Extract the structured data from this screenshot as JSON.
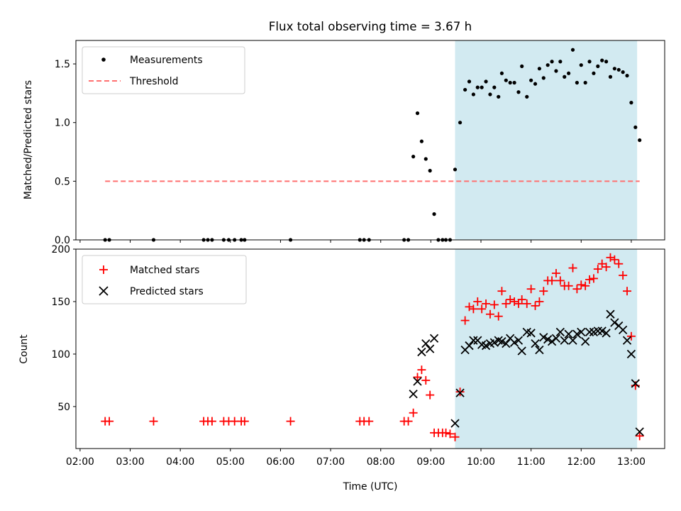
{
  "chart_data": [
    {
      "type": "scatter",
      "title": "Flux total observing time = 3.67 h",
      "xlabel": "",
      "ylabel": "Matched/Predicted stars",
      "ylim": [
        0,
        1.7
      ],
      "yticks": [
        0.0,
        0.5,
        1.0,
        1.5
      ],
      "ytick_labels": [
        "0.0",
        "0.5",
        "1.0",
        "1.5"
      ],
      "shaded_region": {
        "x": [
          "09:29",
          "13:07"
        ],
        "color": "#add8e6"
      },
      "legend": {
        "position": "upper-left",
        "entries": [
          {
            "label": "Measurements",
            "marker": "dot",
            "color": "#000000"
          },
          {
            "label": "Threshold",
            "marker": "dashed-line",
            "color": "#ff7070"
          }
        ]
      },
      "series": [
        {
          "name": "Measurements",
          "color": "#000000",
          "points": [
            [
              "02:30",
              0
            ],
            [
              "02:35",
              0
            ],
            [
              "03:28",
              0
            ],
            [
              "04:28",
              0
            ],
            [
              "04:33",
              0
            ],
            [
              "04:38",
              0
            ],
            [
              "04:52",
              0
            ],
            [
              "04:58",
              0
            ],
            [
              "05:05",
              0
            ],
            [
              "05:13",
              0
            ],
            [
              "05:17",
              0
            ],
            [
              "06:12",
              0
            ],
            [
              "07:35",
              0
            ],
            [
              "07:40",
              0
            ],
            [
              "07:46",
              0
            ],
            [
              "08:28",
              0
            ],
            [
              "08:33",
              0
            ],
            [
              "08:39",
              0.71
            ],
            [
              "08:44",
              1.08
            ],
            [
              "08:49",
              0.84
            ],
            [
              "08:54",
              0.69
            ],
            [
              "08:59",
              0.59
            ],
            [
              "09:04",
              0.22
            ],
            [
              "09:09",
              0
            ],
            [
              "09:14",
              0
            ],
            [
              "09:18",
              0
            ],
            [
              "09:23",
              0
            ],
            [
              "09:29",
              0.6
            ],
            [
              "09:35",
              1.0
            ],
            [
              "09:41",
              1.28
            ],
            [
              "09:46",
              1.35
            ],
            [
              "09:51",
              1.24
            ],
            [
              "09:56",
              1.3
            ],
            [
              "10:01",
              1.3
            ],
            [
              "10:06",
              1.35
            ],
            [
              "10:11",
              1.24
            ],
            [
              "10:16",
              1.3
            ],
            [
              "10:21",
              1.22
            ],
            [
              "10:25",
              1.42
            ],
            [
              "10:30",
              1.36
            ],
            [
              "10:35",
              1.34
            ],
            [
              "10:40",
              1.34
            ],
            [
              "10:45",
              1.26
            ],
            [
              "10:49",
              1.48
            ],
            [
              "10:55",
              1.22
            ],
            [
              "11:00",
              1.36
            ],
            [
              "11:05",
              1.33
            ],
            [
              "11:10",
              1.46
            ],
            [
              "11:15",
              1.38
            ],
            [
              "11:20",
              1.49
            ],
            [
              "11:25",
              1.52
            ],
            [
              "11:30",
              1.44
            ],
            [
              "11:35",
              1.52
            ],
            [
              "11:40",
              1.39
            ],
            [
              "11:45",
              1.42
            ],
            [
              "11:50",
              1.62
            ],
            [
              "11:55",
              1.34
            ],
            [
              "12:00",
              1.49
            ],
            [
              "12:05",
              1.34
            ],
            [
              "12:10",
              1.52
            ],
            [
              "12:15",
              1.42
            ],
            [
              "12:20",
              1.48
            ],
            [
              "12:25",
              1.53
            ],
            [
              "12:30",
              1.52
            ],
            [
              "12:35",
              1.39
            ],
            [
              "12:40",
              1.46
            ],
            [
              "12:45",
              1.45
            ],
            [
              "12:50",
              1.43
            ],
            [
              "12:55",
              1.4
            ],
            [
              "13:00",
              1.17
            ],
            [
              "13:05",
              0.96
            ],
            [
              "13:10",
              0.85
            ]
          ]
        },
        {
          "name": "Threshold",
          "color": "#ff7070",
          "style": "dashed",
          "points": [
            [
              "02:30",
              0.5
            ],
            [
              "13:10",
              0.5
            ]
          ]
        }
      ]
    },
    {
      "type": "scatter",
      "title": "",
      "xlabel": "Time (UTC)",
      "ylabel": "Count",
      "ylim": [
        10,
        200
      ],
      "yticks": [
        50,
        100,
        150,
        200
      ],
      "ytick_labels": [
        "50",
        "100",
        "150",
        "200"
      ],
      "xlim": [
        "01:55",
        "13:40"
      ],
      "xticks": [
        "02:00",
        "03:00",
        "04:00",
        "05:00",
        "06:00",
        "07:00",
        "08:00",
        "09:00",
        "10:00",
        "11:00",
        "12:00",
        "13:00"
      ],
      "xtick_labels": [
        "02:00",
        "03:00",
        "04:00",
        "05:00",
        "06:00",
        "07:00",
        "08:00",
        "09:00",
        "10:00",
        "11:00",
        "12:00",
        "13:00"
      ],
      "shaded_region": {
        "x": [
          "09:29",
          "13:07"
        ],
        "color": "#add8e6"
      },
      "legend": {
        "position": "upper-left",
        "entries": [
          {
            "label": "Matched stars",
            "marker": "plus",
            "color": "#ff0000"
          },
          {
            "label": "Predicted stars",
            "marker": "x",
            "color": "#000000"
          }
        ]
      },
      "series": [
        {
          "name": "Matched stars",
          "color": "#ff0000",
          "marker": "plus",
          "points": [
            [
              "02:30",
              36
            ],
            [
              "02:35",
              36
            ],
            [
              "03:28",
              36
            ],
            [
              "04:28",
              36
            ],
            [
              "04:33",
              36
            ],
            [
              "04:38",
              36
            ],
            [
              "04:52",
              36
            ],
            [
              "04:58",
              36
            ],
            [
              "05:05",
              36
            ],
            [
              "05:13",
              36
            ],
            [
              "05:17",
              36
            ],
            [
              "06:12",
              36
            ],
            [
              "07:35",
              36
            ],
            [
              "07:40",
              36
            ],
            [
              "07:46",
              36
            ],
            [
              "08:28",
              36
            ],
            [
              "08:33",
              36
            ],
            [
              "08:39",
              44
            ],
            [
              "08:44",
              78
            ],
            [
              "08:49",
              85
            ],
            [
              "08:54",
              75
            ],
            [
              "08:59",
              61
            ],
            [
              "09:04",
              25
            ],
            [
              "09:09",
              25
            ],
            [
              "09:14",
              25
            ],
            [
              "09:18",
              25
            ],
            [
              "09:23",
              24
            ],
            [
              "09:29",
              21
            ],
            [
              "09:35",
              64
            ],
            [
              "09:41",
              132
            ],
            [
              "09:46",
              145
            ],
            [
              "09:51",
              143
            ],
            [
              "09:56",
              150
            ],
            [
              "10:01",
              143
            ],
            [
              "10:06",
              148
            ],
            [
              "10:11",
              138
            ],
            [
              "10:16",
              147
            ],
            [
              "10:21",
              136
            ],
            [
              "10:25",
              160
            ],
            [
              "10:30",
              148
            ],
            [
              "10:35",
              152
            ],
            [
              "10:40",
              150
            ],
            [
              "10:45",
              148
            ],
            [
              "10:49",
              152
            ],
            [
              "10:55",
              148
            ],
            [
              "11:00",
              162
            ],
            [
              "11:05",
              146
            ],
            [
              "11:10",
              150
            ],
            [
              "11:15",
              160
            ],
            [
              "11:20",
              170
            ],
            [
              "11:25",
              170
            ],
            [
              "11:30",
              177
            ],
            [
              "11:35",
              170
            ],
            [
              "11:40",
              165
            ],
            [
              "11:45",
              165
            ],
            [
              "11:50",
              182
            ],
            [
              "11:55",
              162
            ],
            [
              "12:00",
              166
            ],
            [
              "12:05",
              165
            ],
            [
              "12:10",
              171
            ],
            [
              "12:15",
              172
            ],
            [
              "12:20",
              181
            ],
            [
              "12:25",
              186
            ],
            [
              "12:30",
              183
            ],
            [
              "12:35",
              192
            ],
            [
              "12:40",
              190
            ],
            [
              "12:45",
              186
            ],
            [
              "12:50",
              175
            ],
            [
              "12:55",
              160
            ],
            [
              "13:00",
              117
            ],
            [
              "13:05",
              70
            ],
            [
              "13:10",
              22
            ]
          ]
        },
        {
          "name": "Predicted stars",
          "color": "#000000",
          "marker": "x",
          "points": [
            [
              "08:39",
              62
            ],
            [
              "08:44",
              74
            ],
            [
              "08:49",
              102
            ],
            [
              "08:54",
              110
            ],
            [
              "08:59",
              105
            ],
            [
              "09:04",
              115
            ],
            [
              "09:29",
              34
            ],
            [
              "09:35",
              63
            ],
            [
              "09:41",
              104
            ],
            [
              "09:46",
              108
            ],
            [
              "09:51",
              113
            ],
            [
              "09:56",
              113
            ],
            [
              "10:01",
              109
            ],
            [
              "10:06",
              108
            ],
            [
              "10:11",
              110
            ],
            [
              "10:16",
              111
            ],
            [
              "10:21",
              113
            ],
            [
              "10:25",
              112
            ],
            [
              "10:30",
              110
            ],
            [
              "10:35",
              115
            ],
            [
              "10:40",
              111
            ],
            [
              "10:45",
              113
            ],
            [
              "10:49",
              103
            ],
            [
              "10:55",
              121
            ],
            [
              "11:00",
              120
            ],
            [
              "11:05",
              110
            ],
            [
              "11:10",
              104
            ],
            [
              "11:15",
              116
            ],
            [
              "11:20",
              114
            ],
            [
              "11:25",
              112
            ],
            [
              "11:30",
              115
            ],
            [
              "11:35",
              121
            ],
            [
              "11:40",
              113
            ],
            [
              "11:45",
              119
            ],
            [
              "11:50",
              113
            ],
            [
              "11:55",
              119
            ],
            [
              "12:00",
              121
            ],
            [
              "12:05",
              112
            ],
            [
              "12:10",
              121
            ],
            [
              "12:15",
              121
            ],
            [
              "12:20",
              122
            ],
            [
              "12:25",
              122
            ],
            [
              "12:30",
              120
            ],
            [
              "12:35",
              138
            ],
            [
              "12:40",
              130
            ],
            [
              "12:45",
              127
            ],
            [
              "12:50",
              123
            ],
            [
              "12:55",
              113
            ],
            [
              "13:00",
              100
            ],
            [
              "13:05",
              72
            ],
            [
              "13:10",
              26
            ]
          ]
        }
      ]
    }
  ]
}
